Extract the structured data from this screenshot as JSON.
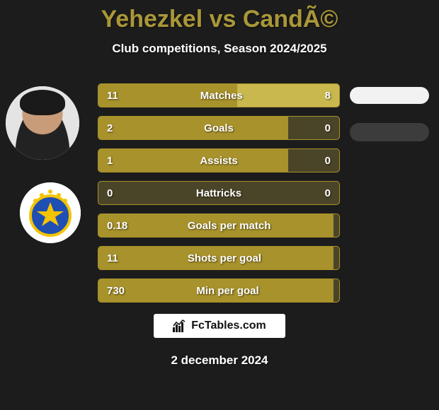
{
  "title_color": "#a99738",
  "title_p1": "Yehezkel",
  "title_mid": " vs ",
  "title_p2": "CandÃ©",
  "subtitle": "Club competitions, Season 2024/2025",
  "date": "2 december 2024",
  "brand_text": "FcTables.com",
  "colors": {
    "bar_left": "#a8922b",
    "bar_right": "#c9b84e",
    "row_bg": "#4a4528",
    "background": "#1c1c1c"
  },
  "row_width": 342,
  "rows": [
    {
      "label": "Matches",
      "left_val": "11",
      "right_val": "8",
      "left_width": 198,
      "right_width": 144,
      "has_pill": true,
      "pill_shadow": false
    },
    {
      "label": "Goals",
      "left_val": "2",
      "right_val": "0",
      "left_width": 268,
      "right_width": 0,
      "has_pill": true,
      "pill_shadow": true
    },
    {
      "label": "Assists",
      "left_val": "1",
      "right_val": "0",
      "left_width": 268,
      "right_width": 0,
      "has_pill": false,
      "pill_shadow": false
    },
    {
      "label": "Hattricks",
      "left_val": "0",
      "right_val": "0",
      "left_width": 0,
      "right_width": 0,
      "has_pill": false,
      "pill_shadow": false
    },
    {
      "label": "Goals per match",
      "left_val": "0.18",
      "right_val": "",
      "left_width": 332,
      "right_width": 0,
      "has_pill": false,
      "pill_shadow": false
    },
    {
      "label": "Shots per goal",
      "left_val": "11",
      "right_val": "",
      "left_width": 332,
      "right_width": 0,
      "has_pill": false,
      "pill_shadow": false
    },
    {
      "label": "Min per goal",
      "left_val": "730",
      "right_val": "",
      "left_width": 332,
      "right_width": 0,
      "has_pill": false,
      "pill_shadow": false
    }
  ]
}
